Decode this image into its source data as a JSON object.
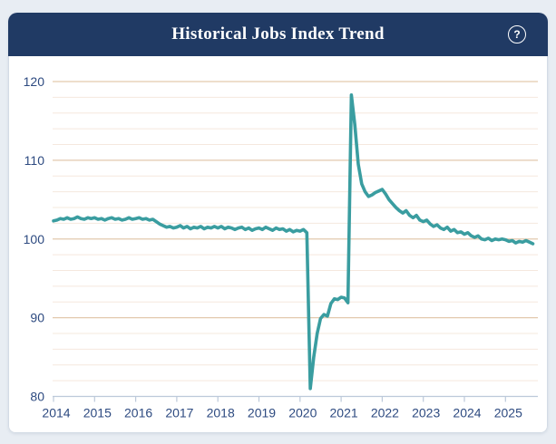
{
  "header": {
    "title": "Historical Jobs Index Trend",
    "help_label": "?"
  },
  "theme": {
    "page_background": "#e8edf3",
    "header_background": "#203a64",
    "card_background": "#ffffff",
    "card_border": "#d3dbe5"
  },
  "chart_data": {
    "type": "line",
    "title": "Historical Jobs Index Trend",
    "series_name": "Jobs Index",
    "x_start_year": 2014,
    "points_per_year": 12,
    "x_tick_labels": [
      "2014",
      "2015",
      "2016",
      "2017",
      "2018",
      "2019",
      "2020",
      "2021",
      "2022",
      "2023",
      "2024",
      "2025"
    ],
    "y_ticks": [
      80,
      90,
      100,
      110,
      120
    ],
    "ylim": [
      80,
      120
    ],
    "minor_grid_step": 2,
    "grid": true,
    "legend": false,
    "colors": {
      "line": "#3a9da0",
      "grid_major": "#e3c9ae",
      "grid_minor": "#f5e8de",
      "axis": "#bcc9da",
      "tick_label": "#2d4a80"
    },
    "values": [
      102.3,
      102.4,
      102.6,
      102.5,
      102.7,
      102.5,
      102.6,
      102.8,
      102.6,
      102.5,
      102.7,
      102.6,
      102.7,
      102.5,
      102.6,
      102.4,
      102.6,
      102.7,
      102.5,
      102.6,
      102.4,
      102.5,
      102.7,
      102.5,
      102.6,
      102.7,
      102.5,
      102.6,
      102.4,
      102.5,
      102.2,
      101.9,
      101.7,
      101.5,
      101.6,
      101.4,
      101.5,
      101.7,
      101.4,
      101.6,
      101.3,
      101.5,
      101.4,
      101.6,
      101.3,
      101.5,
      101.4,
      101.6,
      101.4,
      101.6,
      101.3,
      101.5,
      101.4,
      101.2,
      101.4,
      101.5,
      101.2,
      101.4,
      101.1,
      101.3,
      101.4,
      101.2,
      101.5,
      101.3,
      101.1,
      101.4,
      101.2,
      101.3,
      101.0,
      101.2,
      100.9,
      101.1,
      101.0,
      101.2,
      100.8,
      81.0,
      85.0,
      88.0,
      89.9,
      90.4,
      90.2,
      91.8,
      92.4,
      92.3,
      92.6,
      92.5,
      91.9,
      118.3,
      114.5,
      109.5,
      107.0,
      106.0,
      105.4,
      105.6,
      105.9,
      106.1,
      106.3,
      105.7,
      105.0,
      104.5,
      104.0,
      103.6,
      103.3,
      103.6,
      103.0,
      102.7,
      103.0,
      102.4,
      102.2,
      102.4,
      101.9,
      101.6,
      101.8,
      101.4,
      101.2,
      101.5,
      101.0,
      101.2,
      100.8,
      100.9,
      100.6,
      100.8,
      100.4,
      100.2,
      100.4,
      100.0,
      99.9,
      100.1,
      99.8,
      100.0,
      99.9,
      100.0,
      99.9,
      99.7,
      99.8,
      99.5,
      99.7,
      99.6,
      99.8,
      99.6,
      99.4
    ]
  }
}
